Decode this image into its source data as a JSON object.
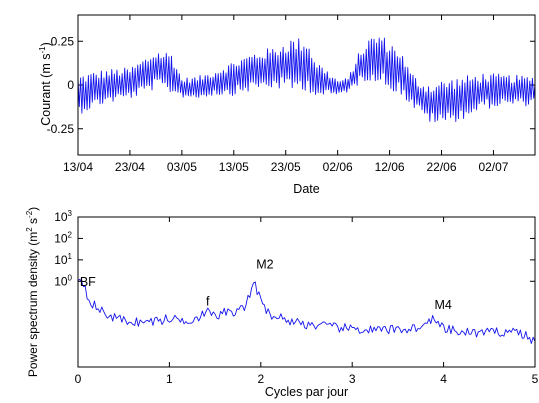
{
  "chart_data": [
    {
      "type": "line",
      "xlabel": "Date",
      "ylabel": "Courant (m s",
      "ylabel_sup": "-1",
      "ylabel_close": ")",
      "x_start": "2000-04-13",
      "x_end": "2000-07-10",
      "xticks": [
        {
          "date": "2000-04-13",
          "label": "13/04"
        },
        {
          "date": "2000-04-23",
          "label": "23/04"
        },
        {
          "date": "2000-05-03",
          "label": "03/05"
        },
        {
          "date": "2000-05-13",
          "label": "13/05"
        },
        {
          "date": "2000-05-23",
          "label": "23/05"
        },
        {
          "date": "2000-06-02",
          "label": "02/06"
        },
        {
          "date": "2000-06-12",
          "label": "12/06"
        },
        {
          "date": "2000-06-22",
          "label": "22/06"
        },
        {
          "date": "2000-07-02",
          "label": "02/07"
        }
      ],
      "ylim": [
        -0.4,
        0.4
      ],
      "yticks": [
        {
          "value": 0.25,
          "label": "0.25"
        },
        {
          "value": 0,
          "label": "0"
        },
        {
          "value": -0.25,
          "label": "-0.25"
        }
      ],
      "series": [
        {
          "color": "#1515ee",
          "envelope": {
            "dates": [
              "2000-04-13",
              "2000-04-18",
              "2000-04-23",
              "2000-04-26",
              "2000-04-28",
              "2000-05-01",
              "2000-05-03",
              "2000-05-06",
              "2000-05-09",
              "2000-05-13",
              "2000-05-17",
              "2000-05-21",
              "2000-05-24",
              "2000-05-27",
              "2000-05-29",
              "2000-06-02",
              "2000-06-04",
              "2000-06-06",
              "2000-06-08",
              "2000-06-10",
              "2000-06-12",
              "2000-06-14",
              "2000-06-16",
              "2000-06-18",
              "2000-06-20",
              "2000-06-22",
              "2000-06-26",
              "2000-06-30",
              "2000-07-04",
              "2000-07-10"
            ],
            "upper": [
              0.06,
              0.09,
              0.1,
              0.16,
              0.2,
              0.19,
              0.04,
              0.05,
              0.08,
              0.14,
              0.19,
              0.22,
              0.27,
              0.27,
              0.14,
              0.03,
              0.04,
              0.18,
              0.27,
              0.3,
              0.25,
              0.21,
              0.08,
              0.02,
              0.01,
              0.03,
              0.05,
              0.07,
              0.06,
              0.05
            ],
            "lower": [
              -0.17,
              -0.11,
              -0.08,
              -0.05,
              -0.02,
              -0.05,
              -0.07,
              -0.08,
              -0.06,
              -0.06,
              -0.03,
              -0.02,
              -0.04,
              -0.03,
              -0.07,
              -0.06,
              -0.04,
              0.0,
              0.03,
              0.01,
              -0.03,
              -0.05,
              -0.12,
              -0.17,
              -0.22,
              -0.23,
              -0.2,
              -0.14,
              -0.12,
              -0.12
            ]
          }
        }
      ]
    },
    {
      "type": "line",
      "xlabel": "Cycles par jour",
      "ylabel": "Power spectrum density (m",
      "ylabel_sup1": "2",
      "ylabel_mid": " s",
      "ylabel_sup2": "-2",
      "ylabel_close": ")",
      "xlim": [
        0,
        5
      ],
      "xticks": [
        {
          "value": 0,
          "label": "0"
        },
        {
          "value": 1,
          "label": "1"
        },
        {
          "value": 2,
          "label": "2"
        },
        {
          "value": 3,
          "label": "3"
        },
        {
          "value": 4,
          "label": "4"
        },
        {
          "value": 5,
          "label": "5"
        }
      ],
      "ylog": true,
      "ylim": [
        0.0001,
        1000
      ],
      "yticks": [
        {
          "value": 1000,
          "base": "10",
          "exp": "3"
        },
        {
          "value": 100,
          "base": "10",
          "exp": "2"
        },
        {
          "value": 10,
          "base": "10",
          "exp": "1"
        },
        {
          "value": 1,
          "base": "10",
          "exp": "0"
        }
      ],
      "annotations": [
        {
          "label": "BF",
          "x": 0.02,
          "y": 0.6
        },
        {
          "label": "f",
          "x": 1.4,
          "y": 0.075
        },
        {
          "label": "M2",
          "x": 1.95,
          "y": 4
        },
        {
          "label": "M4",
          "x": 3.9,
          "y": 0.05
        }
      ],
      "series": [
        {
          "color": "#1515ee",
          "points": [
            [
              0,
              1.5
            ],
            [
              0.06,
              0.9
            ],
            [
              0.1,
              0.25
            ],
            [
              0.15,
              0.1
            ],
            [
              0.2,
              0.06
            ],
            [
              0.3,
              0.03
            ],
            [
              0.4,
              0.02
            ],
            [
              0.5,
              0.015
            ],
            [
              0.7,
              0.012
            ],
            [
              0.9,
              0.015
            ],
            [
              1.0,
              0.018
            ],
            [
              1.2,
              0.015
            ],
            [
              1.35,
              0.025
            ],
            [
              1.4,
              0.04
            ],
            [
              1.45,
              0.03
            ],
            [
              1.5,
              0.02
            ],
            [
              1.6,
              0.04
            ],
            [
              1.7,
              0.03
            ],
            [
              1.8,
              0.05
            ],
            [
              1.88,
              0.2
            ],
            [
              1.93,
              1.5
            ],
            [
              1.96,
              0.4
            ],
            [
              2.0,
              0.1
            ],
            [
              2.1,
              0.03
            ],
            [
              2.3,
              0.015
            ],
            [
              2.5,
              0.01
            ],
            [
              2.8,
              0.007
            ],
            [
              3.0,
              0.006
            ],
            [
              3.3,
              0.005
            ],
            [
              3.6,
              0.006
            ],
            [
              3.8,
              0.008
            ],
            [
              3.87,
              0.02
            ],
            [
              3.93,
              0.01
            ],
            [
              4.0,
              0.006
            ],
            [
              4.2,
              0.004
            ],
            [
              4.5,
              0.004
            ],
            [
              4.8,
              0.005
            ],
            [
              5.0,
              0.0015
            ]
          ]
        }
      ]
    }
  ]
}
